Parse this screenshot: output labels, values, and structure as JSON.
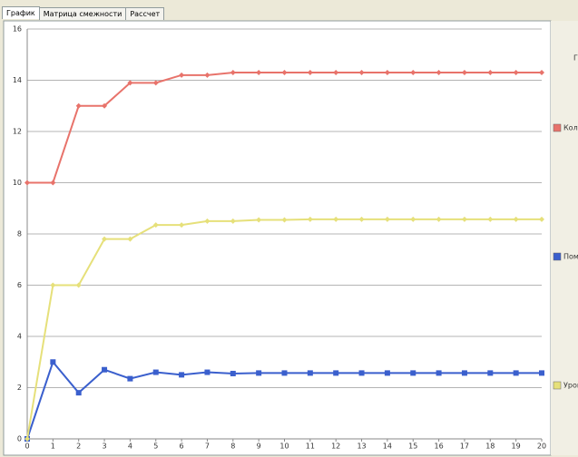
{
  "tabs": [
    "График",
    "Матрица смежности",
    "Рассчет"
  ],
  "chart_data": {
    "type": "line",
    "legend_title": "Г",
    "x": [
      0,
      1,
      2,
      3,
      4,
      5,
      6,
      7,
      8,
      9,
      10,
      11,
      12,
      13,
      14,
      15,
      16,
      17,
      18,
      19,
      20
    ],
    "xlim": [
      0,
      20
    ],
    "xticks": [
      0,
      1,
      2,
      3,
      4,
      5,
      6,
      7,
      8,
      9,
      10,
      11,
      12,
      13,
      14,
      15,
      16,
      17,
      18,
      19,
      20
    ],
    "ylim": [
      0,
      16
    ],
    "yticks": [
      0,
      2,
      4,
      6,
      8,
      10,
      12,
      14,
      16
    ],
    "grid": true,
    "legend": "right",
    "series": [
      {
        "name": "Коли",
        "color": "#e8736b",
        "marker": "diamond",
        "values": [
          10,
          10,
          13,
          13,
          13.9,
          13.9,
          14.2,
          14.2,
          14.3,
          14.3,
          14.3,
          14.3,
          14.3,
          14.3,
          14.3,
          14.3,
          14.3,
          14.3,
          14.3,
          14.3,
          14.3
        ]
      },
      {
        "name": "Поми",
        "color": "#3a5fcd",
        "marker": "square",
        "values": [
          0,
          3,
          1.8,
          2.7,
          2.35,
          2.6,
          2.5,
          2.6,
          2.55,
          2.57,
          2.57,
          2.57,
          2.57,
          2.57,
          2.57,
          2.57,
          2.57,
          2.57,
          2.57,
          2.57,
          2.57
        ]
      },
      {
        "name": "Уров",
        "color": "#e6e07a",
        "marker": "diamond",
        "values": [
          0,
          6,
          6,
          7.8,
          7.8,
          8.35,
          8.35,
          8.5,
          8.5,
          8.55,
          8.55,
          8.57,
          8.57,
          8.57,
          8.57,
          8.57,
          8.57,
          8.57,
          8.57,
          8.57,
          8.57
        ]
      }
    ]
  }
}
